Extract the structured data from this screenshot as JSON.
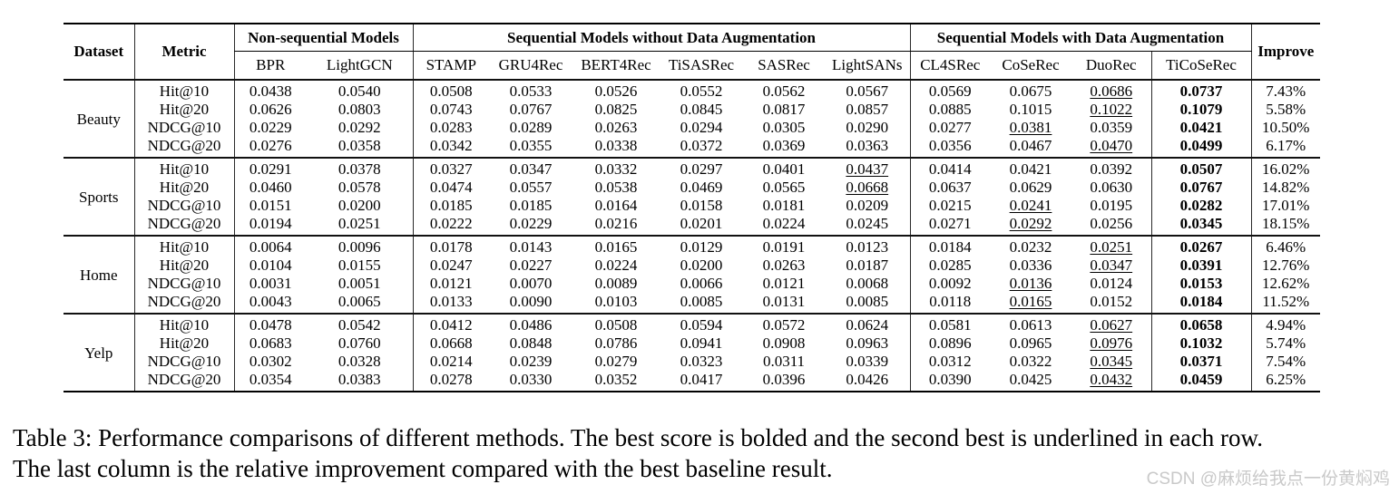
{
  "table": {
    "header": {
      "dataset_label": "Dataset",
      "metric_label": "Metric",
      "groups": [
        {
          "label": "Non-sequential Models",
          "span": 2
        },
        {
          "label": "Sequential Models without Data Augmentation",
          "span": 6
        },
        {
          "label": "Sequential Models with Data Augmentation",
          "span": 4
        }
      ],
      "models": [
        "BPR",
        "LightGCN",
        "STAMP",
        "GRU4Rec",
        "BERT4Rec",
        "TiSASRec",
        "SASRec",
        "LightSANs",
        "CL4SRec",
        "CoSeRec",
        "DuoRec",
        "TiCoSeRec"
      ],
      "improve_label": "Improve"
    },
    "datasets": [
      {
        "name": "Beauty",
        "rows": [
          {
            "metric": "Hit@10",
            "values": [
              "0.0438",
              "0.0540",
              "0.0508",
              "0.0533",
              "0.0526",
              "0.0552",
              "0.0562",
              "0.0567",
              "0.0569",
              "0.0675",
              "0.0686",
              "0.0737"
            ],
            "best_index": 11,
            "second_best_index": 10,
            "improve": "7.43%"
          },
          {
            "metric": "Hit@20",
            "values": [
              "0.0626",
              "0.0803",
              "0.0743",
              "0.0767",
              "0.0825",
              "0.0845",
              "0.0817",
              "0.0857",
              "0.0885",
              "0.1015",
              "0.1022",
              "0.1079"
            ],
            "best_index": 11,
            "second_best_index": 10,
            "improve": "5.58%"
          },
          {
            "metric": "NDCG@10",
            "values": [
              "0.0229",
              "0.0292",
              "0.0283",
              "0.0289",
              "0.0263",
              "0.0294",
              "0.0305",
              "0.0290",
              "0.0277",
              "0.0381",
              "0.0359",
              "0.0421"
            ],
            "best_index": 11,
            "second_best_index": 9,
            "improve": "10.50%"
          },
          {
            "metric": "NDCG@20",
            "values": [
              "0.0276",
              "0.0358",
              "0.0342",
              "0.0355",
              "0.0338",
              "0.0372",
              "0.0369",
              "0.0363",
              "0.0356",
              "0.0467",
              "0.0470",
              "0.0499"
            ],
            "best_index": 11,
            "second_best_index": 10,
            "improve": "6.17%"
          }
        ]
      },
      {
        "name": "Sports",
        "rows": [
          {
            "metric": "Hit@10",
            "values": [
              "0.0291",
              "0.0378",
              "0.0327",
              "0.0347",
              "0.0332",
              "0.0297",
              "0.0401",
              "0.0437",
              "0.0414",
              "0.0421",
              "0.0392",
              "0.0507"
            ],
            "best_index": 11,
            "second_best_index": 7,
            "improve": "16.02%"
          },
          {
            "metric": "Hit@20",
            "values": [
              "0.0460",
              "0.0578",
              "0.0474",
              "0.0557",
              "0.0538",
              "0.0469",
              "0.0565",
              "0.0668",
              "0.0637",
              "0.0629",
              "0.0630",
              "0.0767"
            ],
            "best_index": 11,
            "second_best_index": 7,
            "improve": "14.82%"
          },
          {
            "metric": "NDCG@10",
            "values": [
              "0.0151",
              "0.0200",
              "0.0185",
              "0.0185",
              "0.0164",
              "0.0158",
              "0.0181",
              "0.0209",
              "0.0215",
              "0.0241",
              "0.0195",
              "0.0282"
            ],
            "best_index": 11,
            "second_best_index": 9,
            "improve": "17.01%"
          },
          {
            "metric": "NDCG@20",
            "values": [
              "0.0194",
              "0.0251",
              "0.0222",
              "0.0229",
              "0.0216",
              "0.0201",
              "0.0224",
              "0.0245",
              "0.0271",
              "0.0292",
              "0.0256",
              "0.0345"
            ],
            "best_index": 11,
            "second_best_index": 9,
            "improve": "18.15%"
          }
        ]
      },
      {
        "name": "Home",
        "rows": [
          {
            "metric": "Hit@10",
            "values": [
              "0.0064",
              "0.0096",
              "0.0178",
              "0.0143",
              "0.0165",
              "0.0129",
              "0.0191",
              "0.0123",
              "0.0184",
              "0.0232",
              "0.0251",
              "0.0267"
            ],
            "best_index": 11,
            "second_best_index": 10,
            "improve": "6.46%"
          },
          {
            "metric": "Hit@20",
            "values": [
              "0.0104",
              "0.0155",
              "0.0247",
              "0.0227",
              "0.0224",
              "0.0200",
              "0.0263",
              "0.0187",
              "0.0285",
              "0.0336",
              "0.0347",
              "0.0391"
            ],
            "best_index": 11,
            "second_best_index": 10,
            "improve": "12.76%"
          },
          {
            "metric": "NDCG@10",
            "values": [
              "0.0031",
              "0.0051",
              "0.0121",
              "0.0070",
              "0.0089",
              "0.0066",
              "0.0121",
              "0.0068",
              "0.0092",
              "0.0136",
              "0.0124",
              "0.0153"
            ],
            "best_index": 11,
            "second_best_index": 9,
            "improve": "12.62%"
          },
          {
            "metric": "NDCG@20",
            "values": [
              "0.0043",
              "0.0065",
              "0.0133",
              "0.0090",
              "0.0103",
              "0.0085",
              "0.0131",
              "0.0085",
              "0.0118",
              "0.0165",
              "0.0152",
              "0.0184"
            ],
            "best_index": 11,
            "second_best_index": 9,
            "improve": "11.52%"
          }
        ]
      },
      {
        "name": "Yelp",
        "rows": [
          {
            "metric": "Hit@10",
            "values": [
              "0.0478",
              "0.0542",
              "0.0412",
              "0.0486",
              "0.0508",
              "0.0594",
              "0.0572",
              "0.0624",
              "0.0581",
              "0.0613",
              "0.0627",
              "0.0658"
            ],
            "best_index": 11,
            "second_best_index": 10,
            "improve": "4.94%"
          },
          {
            "metric": "Hit@20",
            "values": [
              "0.0683",
              "0.0760",
              "0.0668",
              "0.0848",
              "0.0786",
              "0.0941",
              "0.0908",
              "0.0963",
              "0.0896",
              "0.0965",
              "0.0976",
              "0.1032"
            ],
            "best_index": 11,
            "second_best_index": 10,
            "improve": "5.74%"
          },
          {
            "metric": "NDCG@10",
            "values": [
              "0.0302",
              "0.0328",
              "0.0214",
              "0.0239",
              "0.0279",
              "0.0323",
              "0.0311",
              "0.0339",
              "0.0312",
              "0.0322",
              "0.0345",
              "0.0371"
            ],
            "best_index": 11,
            "second_best_index": 10,
            "improve": "7.54%"
          },
          {
            "metric": "NDCG@20",
            "values": [
              "0.0354",
              "0.0383",
              "0.0278",
              "0.0330",
              "0.0352",
              "0.0417",
              "0.0396",
              "0.0426",
              "0.0390",
              "0.0425",
              "0.0432",
              "0.0459"
            ],
            "best_index": 11,
            "second_best_index": 10,
            "improve": "6.25%"
          }
        ]
      }
    ]
  },
  "caption": {
    "line1": "Table 3: Performance comparisons of different methods. The best score is bolded and the second best is underlined in each row.",
    "line2": "The last column is the relative improvement compared with the best baseline result."
  },
  "watermark": {
    "text": "CSDN @麻烦给我点一份黄焖鸡",
    "color": "#c9c9c9"
  }
}
